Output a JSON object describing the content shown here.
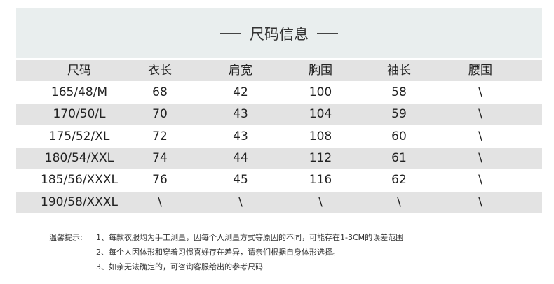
{
  "title": "尺码信息",
  "table": {
    "headers": [
      "尺码",
      "衣长",
      "肩宽",
      "胸围",
      "袖长",
      "腰围"
    ],
    "rows": [
      [
        "165/48/M",
        "68",
        "42",
        "100",
        "58",
        "\\"
      ],
      [
        "170/50/L",
        "70",
        "43",
        "104",
        "59",
        "\\"
      ],
      [
        "175/52/XL",
        "72",
        "43",
        "108",
        "60",
        "\\"
      ],
      [
        "180/54/XXL",
        "74",
        "44",
        "112",
        "61",
        "\\"
      ],
      [
        "185/56/XXXL",
        "76",
        "45",
        "116",
        "62",
        "\\"
      ],
      [
        "190/58/XXXL",
        "\\",
        "\\",
        "\\",
        "\\",
        "\\"
      ]
    ]
  },
  "notes": {
    "label": "温馨提示:",
    "items": [
      "1、每款衣服均为手工测量，因每个人测量方式等原因的不同，可能存在1-3CM的误差范围",
      "2、每个人因体形和穿着习惯喜好存在差异，请亲们根据自身体形选择。",
      "3、如亲无法确定的，可咨询客服给出的参考尺码"
    ]
  },
  "colors": {
    "title_band": "#e9eeee",
    "stripe": "#e3e3e3"
  }
}
